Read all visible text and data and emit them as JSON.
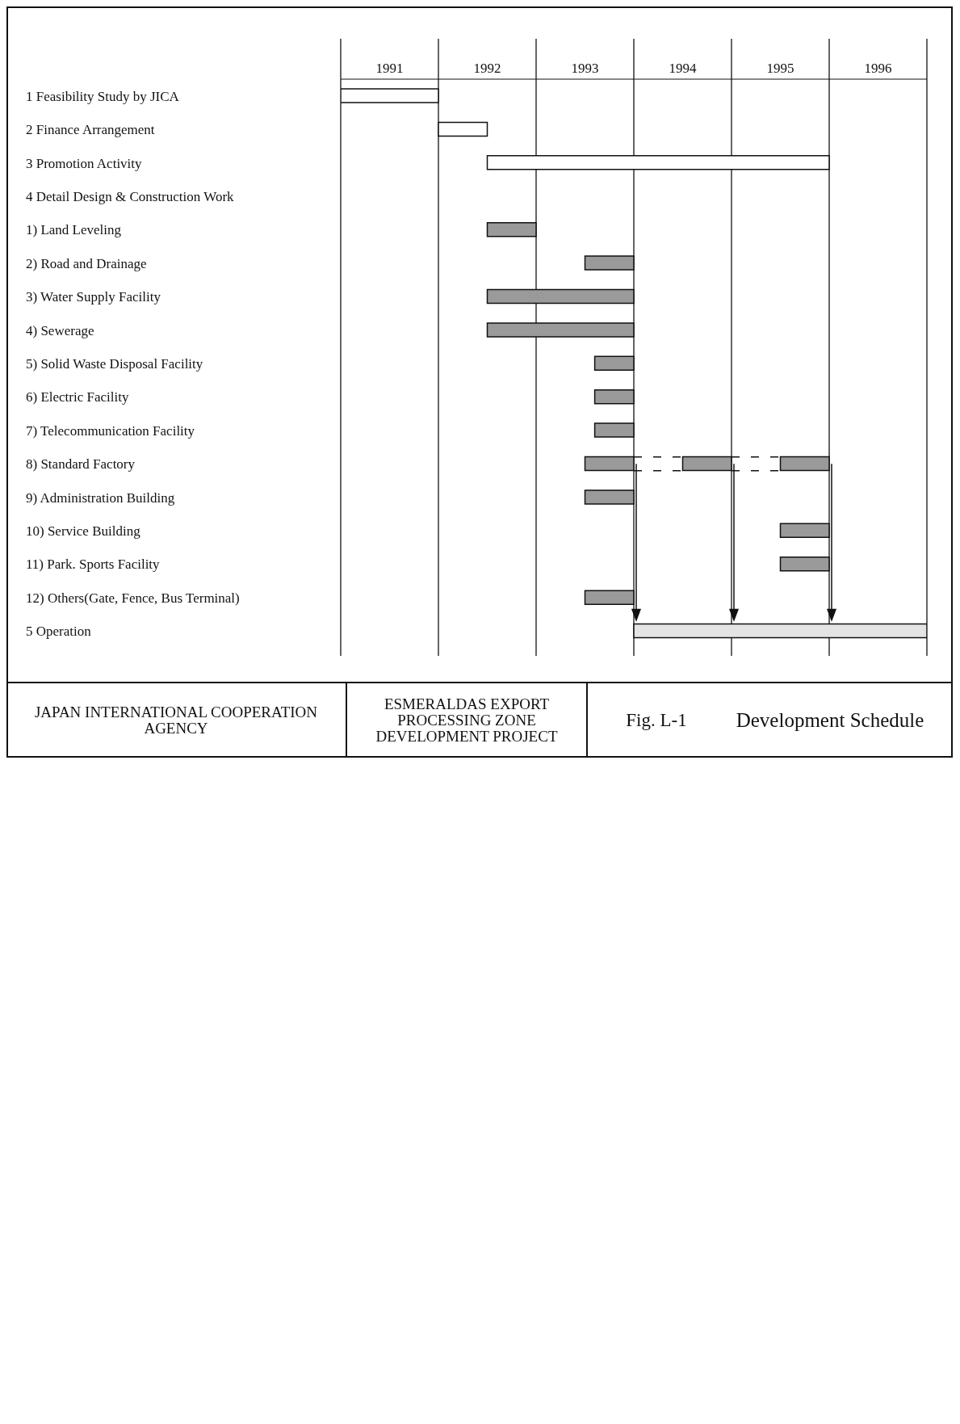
{
  "chart_data": {
    "type": "bar",
    "orientation": "horizontal",
    "title": "Development Schedule",
    "subtitle": "Fig. L-1",
    "annotations": [
      "JAPAN INTERNATIONAL COOPERATION AGENCY",
      "ESMERALDAS EXPORT PROCESSING ZONE DEVELOPMENT PROJECT"
    ],
    "categories": [
      "1 Feasibility Study by JICA",
      "2 Finance Arrangement",
      "3 Promotion Activity",
      "4 Detail Design & Construction Work",
      "1) Land Leveling",
      "2) Road and Drainage",
      "3) Water Supply Facility",
      "4) Sewerage",
      "5) Solid Waste Disposal Facility",
      "6) Electric Facility",
      "7) Telecommunication Facility",
      "8) Standard Factory",
      "9) Administration Building",
      "10) Service Building",
      "11) Park. Sports Facility",
      "12) Others(Gate, Fence, Bus Terminal)",
      "5 Operation"
    ],
    "series": [
      {
        "color": "#ffffff",
        "base": [
          1991,
          1992,
          1992.5,
          null,
          null,
          null,
          null,
          null,
          null,
          null,
          null,
          null,
          null,
          null,
          null,
          null,
          null
        ],
        "values": [
          1,
          0.5,
          3.5,
          null,
          null,
          null,
          null,
          null,
          null,
          null,
          null,
          null,
          null,
          null,
          null,
          null,
          null
        ]
      },
      {
        "color": "#9a9a9a",
        "base": [
          null,
          null,
          null,
          null,
          1992.5,
          1993.5,
          1992.5,
          1992.5,
          1993.6,
          1993.6,
          1993.6,
          1993.5,
          1993.5,
          1995.5,
          1995.5,
          1993.5,
          null
        ],
        "values": [
          null,
          null,
          null,
          null,
          0.5,
          0.5,
          1.5,
          1.5,
          0.4,
          0.4,
          0.4,
          0.5,
          0.5,
          0.5,
          0.5,
          0.5,
          null
        ]
      },
      {
        "color": "#9a9a9a",
        "base": [
          null,
          null,
          null,
          null,
          null,
          null,
          null,
          null,
          null,
          null,
          null,
          1994.5,
          null,
          null,
          null,
          null,
          null
        ],
        "values": [
          null,
          null,
          null,
          null,
          null,
          null,
          null,
          null,
          null,
          null,
          null,
          0.5,
          null,
          null,
          null,
          null,
          null
        ]
      },
      {
        "color": "#9a9a9a",
        "base": [
          null,
          null,
          null,
          null,
          null,
          null,
          null,
          null,
          null,
          null,
          null,
          1995.5,
          null,
          null,
          null,
          null,
          null
        ],
        "values": [
          null,
          null,
          null,
          null,
          null,
          null,
          null,
          null,
          null,
          null,
          null,
          0.5,
          null,
          null,
          null,
          null,
          null
        ]
      },
      {
        "color": "#e4e4e4",
        "base": [
          null,
          null,
          null,
          null,
          null,
          null,
          null,
          null,
          null,
          null,
          null,
          null,
          null,
          null,
          null,
          null,
          1994
        ],
        "values": [
          null,
          null,
          null,
          null,
          null,
          null,
          null,
          null,
          null,
          null,
          null,
          null,
          null,
          null,
          null,
          null,
          3
        ]
      }
    ],
    "xlim": [
      1991,
      1997
    ],
    "xticks": [
      {
        "value": 1991,
        "label": null
      },
      {
        "value": 1991.5,
        "label": "1991"
      },
      {
        "value": 1992,
        "label": null
      },
      {
        "value": 1992.5,
        "label": "1992"
      },
      {
        "value": 1993,
        "label": null
      },
      {
        "value": 1993.5,
        "label": "1993"
      },
      {
        "value": 1994,
        "label": null
      },
      {
        "value": 1994.5,
        "label": "1994"
      },
      {
        "value": 1995,
        "label": null
      },
      {
        "value": 1995.5,
        "label": "1995"
      },
      {
        "value": 1996,
        "label": null
      },
      {
        "value": 1996.5,
        "label": "1996"
      },
      {
        "value": 1997,
        "label": null
      }
    ],
    "grid": "x"
  }
}
